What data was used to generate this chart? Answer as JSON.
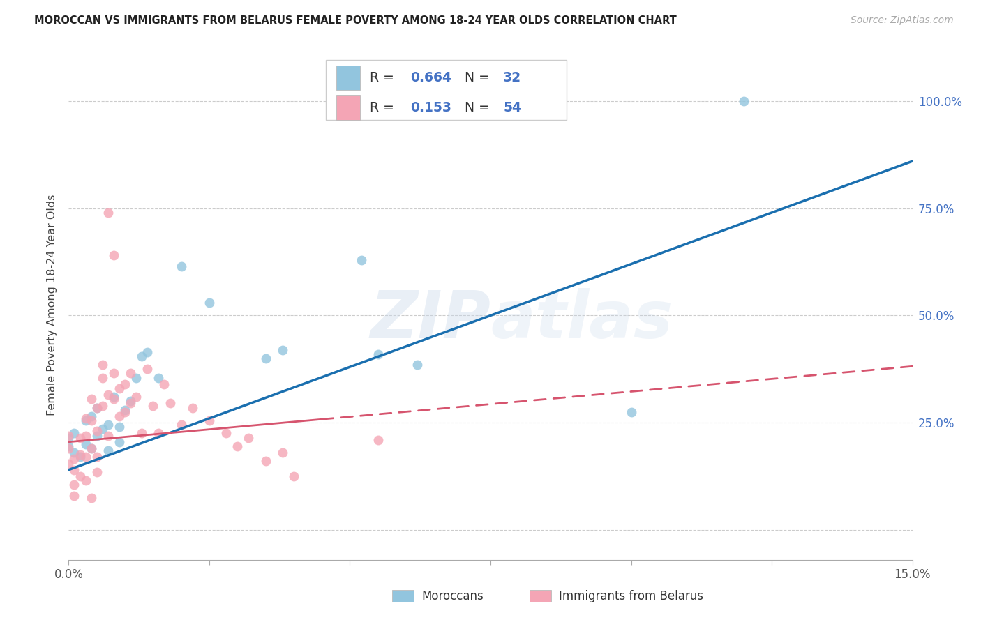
{
  "title": "MOROCCAN VS IMMIGRANTS FROM BELARUS FEMALE POVERTY AMONG 18-24 YEAR OLDS CORRELATION CHART",
  "source": "Source: ZipAtlas.com",
  "ylabel": "Female Poverty Among 18-24 Year Olds",
  "watermark": "ZIPatlas",
  "legend_label1": "Moroccans",
  "legend_label2": "Immigrants from Belarus",
  "R1": "0.664",
  "N1": "32",
  "R2": "0.153",
  "N2": "54",
  "color_blue": "#92c5de",
  "color_pink": "#f4a5b5",
  "line_blue": "#1a6faf",
  "line_pink": "#d6546e",
  "text_blue": "#4472c4",
  "xlim": [
    0.0,
    0.15
  ],
  "ylim": [
    -0.07,
    1.12
  ],
  "xtick_positions": [
    0.0,
    0.025,
    0.05,
    0.075,
    0.1,
    0.125,
    0.15
  ],
  "xtick_labels": [
    "0.0%",
    "",
    "",
    "",
    "",
    "",
    "15.0%"
  ],
  "ytick_positions": [
    0.0,
    0.25,
    0.5,
    0.75,
    1.0
  ],
  "ytick_labels_right": [
    "",
    "25.0%",
    "50.0%",
    "75.0%",
    "100.0%"
  ],
  "blue_line_x0": 0.0,
  "blue_line_y0": 0.14,
  "blue_line_x1": 0.15,
  "blue_line_y1": 0.86,
  "pink_line_x0": 0.0,
  "pink_line_y0": 0.205,
  "pink_line_x1": 0.085,
  "pink_line_y1": 0.305,
  "moroccan_x": [
    0.0,
    0.0,
    0.001,
    0.001,
    0.002,
    0.003,
    0.003,
    0.004,
    0.004,
    0.005,
    0.005,
    0.006,
    0.007,
    0.007,
    0.008,
    0.009,
    0.009,
    0.01,
    0.011,
    0.012,
    0.013,
    0.014,
    0.016,
    0.02,
    0.025,
    0.035,
    0.038,
    0.052,
    0.055,
    0.062,
    0.1,
    0.12
  ],
  "moroccan_y": [
    0.195,
    0.215,
    0.18,
    0.225,
    0.17,
    0.2,
    0.255,
    0.19,
    0.265,
    0.22,
    0.285,
    0.235,
    0.245,
    0.185,
    0.31,
    0.24,
    0.205,
    0.28,
    0.3,
    0.355,
    0.405,
    0.415,
    0.355,
    0.615,
    0.53,
    0.4,
    0.42,
    0.63,
    0.41,
    0.385,
    0.275,
    1.0
  ],
  "belarus_x": [
    0.0,
    0.0,
    0.0,
    0.001,
    0.001,
    0.001,
    0.001,
    0.002,
    0.002,
    0.002,
    0.003,
    0.003,
    0.003,
    0.003,
    0.004,
    0.004,
    0.004,
    0.004,
    0.005,
    0.005,
    0.005,
    0.005,
    0.006,
    0.006,
    0.006,
    0.007,
    0.007,
    0.007,
    0.008,
    0.008,
    0.008,
    0.009,
    0.009,
    0.01,
    0.01,
    0.011,
    0.011,
    0.012,
    0.013,
    0.014,
    0.015,
    0.016,
    0.017,
    0.018,
    0.02,
    0.022,
    0.025,
    0.028,
    0.03,
    0.032,
    0.035,
    0.038,
    0.04,
    0.055
  ],
  "belarus_y": [
    0.22,
    0.19,
    0.155,
    0.165,
    0.14,
    0.105,
    0.08,
    0.215,
    0.175,
    0.125,
    0.26,
    0.22,
    0.17,
    0.115,
    0.305,
    0.255,
    0.19,
    0.075,
    0.285,
    0.23,
    0.17,
    0.135,
    0.355,
    0.29,
    0.385,
    0.74,
    0.315,
    0.22,
    0.365,
    0.305,
    0.64,
    0.33,
    0.265,
    0.275,
    0.34,
    0.365,
    0.295,
    0.31,
    0.225,
    0.375,
    0.29,
    0.225,
    0.34,
    0.295,
    0.245,
    0.285,
    0.255,
    0.225,
    0.195,
    0.215,
    0.16,
    0.18,
    0.125,
    0.21
  ]
}
